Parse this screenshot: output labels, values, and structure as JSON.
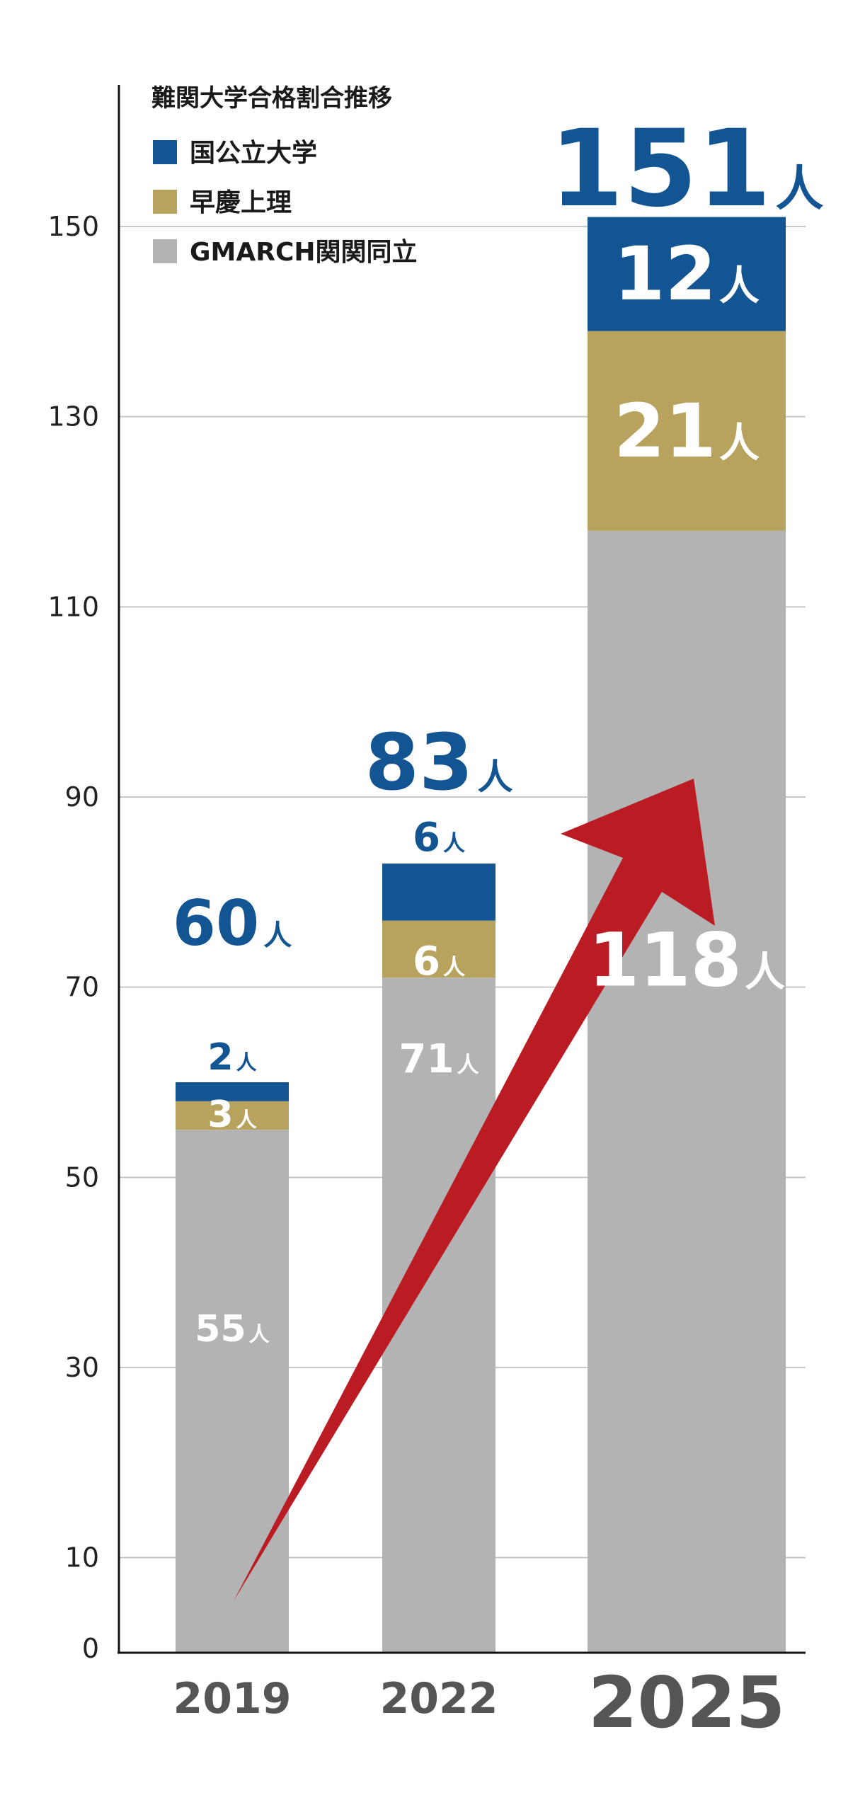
{
  "chart_data": {
    "type": "bar",
    "stacked": true,
    "title": "難関大学合格割合推移",
    "categories": [
      "2019",
      "2022",
      "2025"
    ],
    "series": [
      {
        "name": "GMARCH関関同立",
        "color": "#b3b3b3",
        "values": [
          55,
          71,
          118
        ],
        "labels": [
          "55",
          "71",
          "118"
        ]
      },
      {
        "name": "早慶上理",
        "color": "#b8a35e",
        "values": [
          3,
          6,
          21
        ],
        "labels": [
          "3",
          "6",
          "21"
        ]
      },
      {
        "name": "国公立大学",
        "color": "#135593",
        "values": [
          2,
          6,
          12
        ],
        "labels": [
          "2",
          "6",
          "12"
        ]
      }
    ],
    "totals": [
      "60",
      "83",
      "151"
    ],
    "unit": "人",
    "y_ticks": [
      "0",
      "10",
      "30",
      "50",
      "70",
      "90",
      "110",
      "130",
      "150"
    ],
    "ylim": [
      0,
      157
    ],
    "grid": true,
    "legend_position": "top-left",
    "arrow_color": "#bb1c24",
    "total_color": "#135593"
  }
}
